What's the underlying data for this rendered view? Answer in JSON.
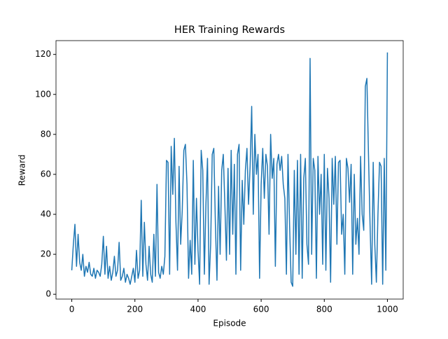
{
  "chart_data": {
    "type": "line",
    "title": "HER Training Rewards",
    "x_label": "Episode",
    "y_label": "Reward",
    "xlim": [
      -50,
      1050
    ],
    "ylim": [
      -2.4,
      126.9
    ],
    "xticks": [
      0,
      200,
      400,
      600,
      800,
      1000
    ],
    "yticks": [
      0,
      20,
      40,
      60,
      80,
      100,
      120
    ],
    "x": [
      0,
      5,
      10,
      15,
      20,
      25,
      30,
      35,
      40,
      45,
      50,
      55,
      60,
      65,
      70,
      75,
      80,
      85,
      90,
      95,
      100,
      105,
      110,
      115,
      120,
      125,
      130,
      135,
      140,
      145,
      150,
      155,
      160,
      165,
      170,
      175,
      180,
      185,
      190,
      195,
      200,
      205,
      210,
      215,
      220,
      225,
      230,
      235,
      240,
      245,
      250,
      255,
      260,
      265,
      270,
      275,
      280,
      285,
      290,
      295,
      300,
      305,
      310,
      315,
      320,
      325,
      330,
      335,
      340,
      345,
      350,
      355,
      360,
      365,
      370,
      375,
      380,
      385,
      390,
      395,
      400,
      405,
      410,
      415,
      420,
      425,
      430,
      435,
      440,
      445,
      450,
      455,
      460,
      465,
      470,
      475,
      480,
      485,
      490,
      495,
      500,
      505,
      510,
      515,
      520,
      525,
      530,
      535,
      540,
      545,
      550,
      555,
      560,
      565,
      570,
      575,
      580,
      585,
      590,
      595,
      600,
      605,
      610,
      615,
      620,
      625,
      630,
      635,
      640,
      645,
      650,
      655,
      660,
      665,
      670,
      675,
      680,
      685,
      690,
      695,
      700,
      705,
      710,
      715,
      720,
      725,
      730,
      735,
      740,
      745,
      750,
      755,
      760,
      765,
      770,
      775,
      780,
      785,
      790,
      795,
      800,
      805,
      810,
      815,
      820,
      825,
      830,
      835,
      840,
      845,
      850,
      855,
      860,
      865,
      870,
      875,
      880,
      885,
      890,
      895,
      900,
      905,
      910,
      915,
      920,
      925,
      930,
      935,
      940,
      945,
      950,
      955,
      960,
      965,
      970,
      975,
      980,
      985,
      990,
      995,
      1000
    ],
    "series": [
      {
        "name": "Reward",
        "color": "#1f77b4",
        "values": [
          12,
          25,
          35,
          14,
          30,
          16,
          12,
          20,
          9,
          14,
          11,
          16,
          10,
          9,
          13,
          8,
          12,
          11,
          9,
          15,
          29,
          10,
          24,
          8,
          14,
          7,
          11,
          19,
          9,
          12,
          26,
          7,
          9,
          13,
          6,
          10,
          8,
          5,
          9,
          13,
          6,
          22,
          8,
          12,
          47,
          9,
          36,
          15,
          7,
          24,
          10,
          6,
          30,
          9,
          55,
          11,
          8,
          14,
          10,
          19,
          67,
          66,
          10,
          74,
          50,
          78,
          36,
          12,
          64,
          25,
          42,
          72,
          75,
          55,
          8,
          27,
          10,
          67,
          15,
          48,
          22,
          5,
          72,
          62,
          10,
          45,
          68,
          5,
          25,
          70,
          73,
          35,
          7,
          54,
          20,
          62,
          70,
          45,
          17,
          63,
          20,
          72,
          30,
          65,
          10,
          70,
          75,
          12,
          57,
          35,
          62,
          73,
          45,
          64,
          94,
          40,
          80,
          60,
          70,
          8,
          55,
          73,
          48,
          70,
          64,
          30,
          80,
          58,
          68,
          14,
          65,
          70,
          62,
          69,
          55,
          48,
          10,
          70,
          35,
          6,
          4,
          62,
          20,
          67,
          10,
          70,
          8,
          58,
          68,
          25,
          15,
          118,
          20,
          68,
          62,
          8,
          69,
          40,
          60,
          15,
          70,
          12,
          63,
          48,
          6,
          68,
          45,
          69,
          25,
          66,
          67,
          30,
          40,
          10,
          68,
          63,
          46,
          65,
          10,
          60,
          25,
          38,
          20,
          69,
          40,
          32,
          104,
          108,
          70,
          35,
          5,
          66,
          25,
          6,
          40,
          66,
          64,
          5,
          68,
          12,
          121
        ]
      }
    ]
  }
}
